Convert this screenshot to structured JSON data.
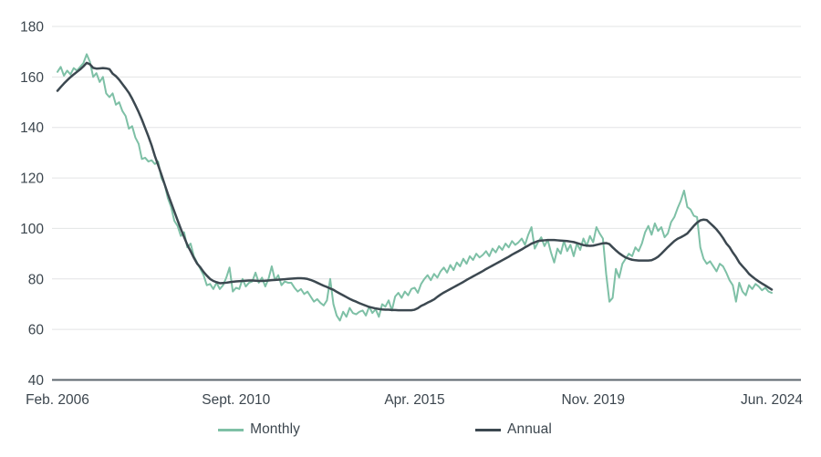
{
  "chart_data": {
    "type": "line",
    "title": "",
    "xlabel": "",
    "ylabel": "",
    "x_start_label": "Feb. 2006",
    "x_end_label": "Jun. 2024",
    "x_tick_labels": [
      "Feb. 2006",
      "Sept. 2010",
      "Apr. 2015",
      "Nov. 2019",
      "Jun. 2024"
    ],
    "y_ticks": [
      40,
      60,
      80,
      100,
      120,
      140,
      160,
      180
    ],
    "ylim": [
      40,
      180
    ],
    "grid": "horizontal",
    "legend_position": "bottom-center",
    "series": [
      {
        "name": "Monthly",
        "color": "#7ec0a6",
        "stroke_width": 2,
        "values": [
          162,
          164,
          160.5,
          162.5,
          161,
          163.5,
          162.5,
          164,
          165.5,
          169,
          166,
          160,
          161.5,
          158,
          160,
          153.5,
          152,
          153.5,
          149,
          150,
          146.5,
          144.5,
          139.5,
          140.5,
          136,
          133.5,
          127.5,
          128,
          126.5,
          127,
          125.5,
          126.5,
          120,
          117.5,
          112,
          108.5,
          103,
          101,
          97,
          98.5,
          92.5,
          94,
          89,
          86.5,
          84,
          81.5,
          77.5,
          78,
          76,
          78.5,
          76,
          77.5,
          80.5,
          84.5,
          75,
          76.5,
          76,
          80,
          77,
          78.5,
          79,
          82.5,
          78.5,
          80.5,
          77,
          80,
          85,
          79.5,
          81.5,
          77.5,
          79,
          78.5,
          78.5,
          76.5,
          75,
          76,
          74,
          75,
          73,
          71,
          72,
          70.5,
          69.5,
          71.5,
          80,
          70,
          65.5,
          63.5,
          67,
          65,
          68.5,
          66.5,
          66,
          67,
          67.5,
          65.5,
          69,
          66.5,
          68,
          65,
          70,
          69,
          71.5,
          67.5,
          73,
          74.5,
          72.5,
          75,
          73.5,
          76,
          76.5,
          74.5,
          78,
          80,
          81.5,
          79.5,
          82,
          80.5,
          83,
          84.5,
          82.5,
          85.5,
          83.5,
          86.5,
          85,
          88,
          86,
          89,
          87.5,
          90,
          88.5,
          89.5,
          91,
          89,
          92,
          90.5,
          93,
          91.5,
          94,
          92.5,
          95,
          93.5,
          94.5,
          96,
          93.5,
          97.5,
          100.5,
          92,
          94.5,
          96.5,
          93,
          95.5,
          90.5,
          86.5,
          92,
          90,
          95,
          91,
          93.5,
          89,
          94,
          91.5,
          96,
          93,
          97,
          94.5,
          100.5,
          98,
          96,
          82,
          71,
          72.5,
          84,
          80.5,
          86,
          88,
          90,
          89,
          92.5,
          91,
          94,
          98.5,
          101,
          97.5,
          102,
          99,
          100.5,
          96.5,
          98,
          102.5,
          104.5,
          108,
          111,
          115,
          108.5,
          107.5,
          105,
          104.5,
          92.5,
          88,
          86,
          87,
          85,
          83,
          86,
          85,
          82.5,
          79.5,
          77.5,
          71,
          78.5,
          75,
          73.5,
          77.5,
          76,
          78,
          77,
          75.5,
          76.5,
          75,
          74.5
        ]
      },
      {
        "name": "Annual",
        "color": "#3c4850",
        "stroke_width": 2.5,
        "values": [
          154.5,
          156,
          157.4,
          158.7,
          159.9,
          161,
          162,
          163,
          164.2,
          165.6,
          165,
          163.6,
          163.3,
          163.4,
          163.5,
          163.4,
          163.1,
          161.3,
          160.3,
          158.9,
          157.2,
          155.5,
          153.7,
          151.4,
          148.8,
          146.1,
          143.1,
          139.8,
          136.5,
          132.9,
          128.7,
          125.1,
          121.4,
          117.5,
          113.7,
          110.2,
          106.7,
          103.2,
          99.8,
          96.6,
          93.5,
          91,
          88.4,
          86.1,
          84.6,
          82.8,
          81.3,
          80,
          79.2,
          78.7,
          78.3,
          78.4,
          78.5,
          78.7,
          78.9,
          79,
          79.1,
          79.2,
          79.3,
          79.4,
          79.4,
          79.3,
          79.2,
          79.2,
          79.3,
          79.4,
          79.5,
          79.6,
          79.7,
          79.8,
          79.9,
          80,
          80.1,
          80.2,
          80.3,
          80.3,
          80.2,
          80,
          79.6,
          79.1,
          78.5,
          77.9,
          77.3,
          76.8,
          76.2,
          75.7,
          74.9,
          74.2,
          73.5,
          72.8,
          72.1,
          71.5,
          71,
          70.4,
          69.9,
          69.4,
          68.9,
          68.6,
          68.3,
          68.1,
          67.9,
          67.8,
          67.8,
          67.7,
          67.7,
          67.6,
          67.6,
          67.6,
          67.6,
          67.6,
          67.8,
          68.4,
          69.3,
          69.9,
          70.6,
          71.2,
          71.9,
          72.9,
          73.8,
          74.6,
          75.3,
          76,
          76.7,
          77.4,
          78.1,
          78.8,
          79.6,
          80.3,
          81,
          81.7,
          82.4,
          83.1,
          83.9,
          84.6,
          85.3,
          86,
          86.7,
          87.4,
          88.1,
          88.8,
          89.6,
          90.3,
          91,
          91.7,
          92.5,
          93.2,
          94,
          94.5,
          95,
          95.2,
          95.3,
          95.4,
          95.4,
          95.4,
          95.3,
          95.2,
          95.1,
          95,
          94.8,
          94.6,
          94.2,
          93.8,
          93.4,
          93.2,
          93.1,
          93.2,
          93.5,
          93.8,
          94.1,
          94.2,
          93.8,
          92.5,
          91.3,
          90.2,
          89.3,
          88.5,
          88,
          87.6,
          87.4,
          87.3,
          87.3,
          87.3,
          87.3,
          87.4,
          88,
          88.8,
          90,
          91.3,
          92.6,
          93.8,
          95,
          95.9,
          96.5,
          97.2,
          98,
          99.5,
          101,
          102.3,
          103.2,
          103.5,
          103.3,
          102.1,
          100.9,
          99.6,
          98,
          96.2,
          94.1,
          92.6,
          90.5,
          88.7,
          86.5,
          85,
          83.6,
          82,
          80.9,
          79.9,
          79,
          78.2,
          77.4,
          76.6,
          75.8
        ]
      }
    ]
  },
  "colors": {
    "background": "#ffffff",
    "gridline": "#e3e4e5",
    "axis_line": "#5c666e",
    "tick_text": "#3c464e",
    "monthly_line": "#7ec0a6",
    "annual_line": "#3c4850"
  },
  "legend": {
    "items": [
      {
        "label": "Monthly"
      },
      {
        "label": "Annual"
      }
    ]
  }
}
